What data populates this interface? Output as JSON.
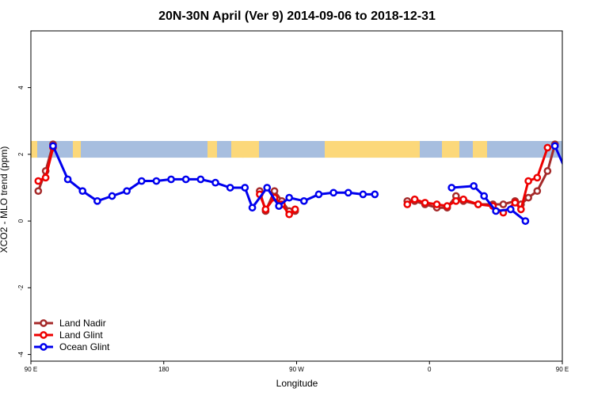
{
  "chart_data": {
    "type": "line",
    "title": "20N-30N April (Ver 9)   2014-09-06 to 2018-12-31",
    "xlabel": "Longitude",
    "ylabel": "XCO2 - MLO trend (ppm)",
    "xlim": [
      90,
      450
    ],
    "ylim": [
      -4.2,
      5.7
    ],
    "x_ticks": [
      {
        "value": 90,
        "label": "90 E"
      },
      {
        "value": 180,
        "label": "180"
      },
      {
        "value": 270,
        "label": "90 W"
      },
      {
        "value": 360,
        "label": "0"
      },
      {
        "value": 450,
        "label": "90 E"
      },
      {
        "value": 540,
        "label": "180"
      }
    ],
    "y_ticks": [
      {
        "value": -4,
        "label": "-4"
      },
      {
        "value": -2,
        "label": "-2"
      },
      {
        "value": 0,
        "label": "0"
      },
      {
        "value": 2,
        "label": "2"
      },
      {
        "value": 4,
        "label": "4"
      }
    ],
    "map_band": {
      "y_min": 1.9,
      "y_max": 2.4,
      "ocean_color": "#a7bedf",
      "land_color": "#fcd87a"
    },
    "legend": {
      "position": "bottom-left"
    },
    "series": [
      {
        "name": "Land Nadir",
        "color": "#a52a2a",
        "segments": [
          [
            [
              95,
              0.9
            ],
            [
              100,
              1.5
            ],
            [
              105,
              2.3
            ]
          ],
          [
            [
              245,
              0.9
            ],
            [
              249,
              0.3
            ],
            [
              255,
              0.9
            ],
            [
              260,
              0.6
            ],
            [
              265,
              0.3
            ],
            [
              269,
              0.3
            ]
          ],
          [
            [
              345,
              0.6
            ],
            [
              350,
              0.6
            ],
            [
              357,
              0.5
            ],
            [
              365,
              0.4
            ],
            [
              372,
              0.4
            ],
            [
              378,
              0.75
            ],
            [
              383,
              0.6
            ],
            [
              393,
              0.5
            ],
            [
              403,
              0.5
            ],
            [
              410,
              0.5
            ],
            [
              418,
              0.6
            ],
            [
              422,
              0.5
            ],
            [
              427,
              0.7
            ],
            [
              433,
              0.9
            ],
            [
              440,
              1.5
            ],
            [
              445,
              2.3
            ]
          ]
        ]
      },
      {
        "name": "Land Glint",
        "color": "#ee0000",
        "segments": [
          [
            [
              95,
              1.2
            ],
            [
              100,
              1.3
            ],
            [
              105,
              2.2
            ]
          ],
          [
            [
              245,
              0.8
            ],
            [
              249,
              0.35
            ],
            [
              255,
              0.7
            ],
            [
              260,
              0.5
            ],
            [
              265,
              0.2
            ],
            [
              269,
              0.35
            ]
          ],
          [
            [
              345,
              0.5
            ],
            [
              350,
              0.65
            ],
            [
              357,
              0.55
            ],
            [
              365,
              0.5
            ],
            [
              372,
              0.45
            ],
            [
              378,
              0.6
            ],
            [
              383,
              0.65
            ],
            [
              393,
              0.5
            ],
            [
              403,
              0.45
            ],
            [
              410,
              0.25
            ],
            [
              418,
              0.55
            ],
            [
              422,
              0.35
            ],
            [
              427,
              1.2
            ],
            [
              433,
              1.3
            ],
            [
              440,
              2.2
            ]
          ]
        ]
      },
      {
        "name": "Ocean Glint",
        "color": "#0000ee",
        "segments": [
          [
            [
              105,
              2.25
            ],
            [
              115,
              1.25
            ],
            [
              125,
              0.9
            ],
            [
              135,
              0.6
            ],
            [
              145,
              0.75
            ],
            [
              155,
              0.9
            ],
            [
              165,
              1.2
            ],
            [
              175,
              1.2
            ],
            [
              185,
              1.25
            ],
            [
              195,
              1.25
            ],
            [
              205,
              1.25
            ],
            [
              215,
              1.15
            ],
            [
              225,
              1.0
            ],
            [
              235,
              1.0
            ],
            [
              240,
              0.4
            ],
            [
              250,
              1.0
            ],
            [
              258,
              0.45
            ],
            [
              265,
              0.7
            ],
            [
              275,
              0.6
            ],
            [
              285,
              0.8
            ],
            [
              295,
              0.85
            ],
            [
              305,
              0.85
            ],
            [
              315,
              0.8
            ],
            [
              323,
              0.8
            ]
          ],
          [
            [
              375,
              1.0
            ],
            [
              390,
              1.05
            ],
            [
              397,
              0.75
            ],
            [
              405,
              0.3
            ],
            [
              415,
              0.35
            ],
            [
              425,
              0.0
            ]
          ],
          [
            [
              445,
              2.25
            ],
            [
              455,
              1.25
            ],
            [
              465,
              0.9
            ],
            [
              475,
              0.6
            ],
            [
              485,
              0.75
            ],
            [
              495,
              0.9
            ],
            [
              505,
              1.2
            ]
          ]
        ]
      }
    ]
  }
}
